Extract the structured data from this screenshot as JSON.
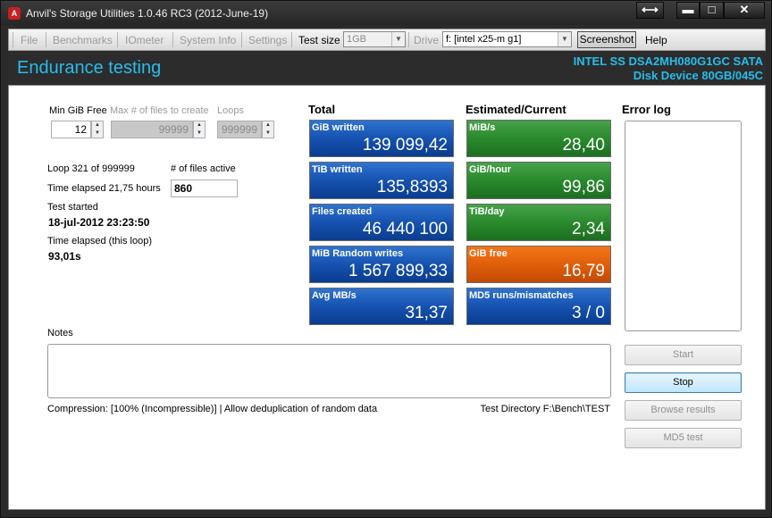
{
  "window": {
    "title": "Anvil's Storage Utilities 1.0.46 RC3 (2012-June-19)",
    "icon_letter": "A"
  },
  "caption_buttons": {
    "restore_glyph": "⟷",
    "minimize_glyph": "▬",
    "maximize_glyph": "□",
    "close_glyph": "✕"
  },
  "menu": {
    "file": "File",
    "benchmarks": "Benchmarks",
    "iometer": "IOmeter",
    "system_info": "System Info",
    "settings": "Settings",
    "test_size_label": "Test size",
    "test_size_value": "1GB",
    "drive_label": "Drive",
    "drive_value": "f: [intel x25-m g1]",
    "screenshot": "Screenshot",
    "help": "Help"
  },
  "header": {
    "title": "Endurance testing",
    "disk_line1": "INTEL SS DSA2MH080G1GC SATA",
    "disk_line2": "Disk Device 80GB/045C"
  },
  "settings": {
    "min_gib_free_label": "Min GiB Free",
    "min_gib_free_value": "12",
    "max_files_label": "Max # of files to create",
    "max_files_value": "99999",
    "loops_label": "Loops",
    "loops_value": "999999"
  },
  "status": {
    "loop_text": "Loop 321 of 999999",
    "elapsed_text": "Time elapsed 21,75 hours",
    "files_active_label": "# of files active",
    "files_active_value": "860",
    "test_started_label": "Test started",
    "test_started_value": "18-jul-2012 23:23:50",
    "loop_elapsed_label": "Time elapsed (this loop)",
    "loop_elapsed_value": "93,01s"
  },
  "totals": {
    "heading": "Total",
    "tiles": [
      {
        "label": "GiB written",
        "value": "139 099,42"
      },
      {
        "label": "TiB written",
        "value": "135,8393"
      },
      {
        "label": "Files created",
        "value": "46 440 100"
      },
      {
        "label": "MiB Random writes",
        "value": "1 567 899,33"
      },
      {
        "label": "Avg MB/s",
        "value": "31,37"
      }
    ]
  },
  "estimates": {
    "heading": "Estimated/Current",
    "tiles": [
      {
        "label": "MiB/s",
        "value": "28,40"
      },
      {
        "label": "GiB/hour",
        "value": "99,86"
      },
      {
        "label": "TiB/day",
        "value": "2,34"
      },
      {
        "label": "GiB free",
        "value": "16,79"
      },
      {
        "label": "MD5 runs/mismatches",
        "value": "3 / 0"
      }
    ]
  },
  "error_log": {
    "heading": "Error log"
  },
  "notes": {
    "label": "Notes"
  },
  "footer": {
    "compression": "Compression: [100% (Incompressible)] | Allow deduplication of random data",
    "test_directory": "Test Directory F:\\Bench\\TEST"
  },
  "buttons": {
    "start": "Start",
    "stop": "Stop",
    "browse": "Browse results",
    "md5": "MD5 test"
  },
  "colors": {
    "header_text": "#28bdeb",
    "tile_blue": "#1652b0",
    "tile_green": "#2a8a2d",
    "tile_orange": "#e05f0a"
  }
}
